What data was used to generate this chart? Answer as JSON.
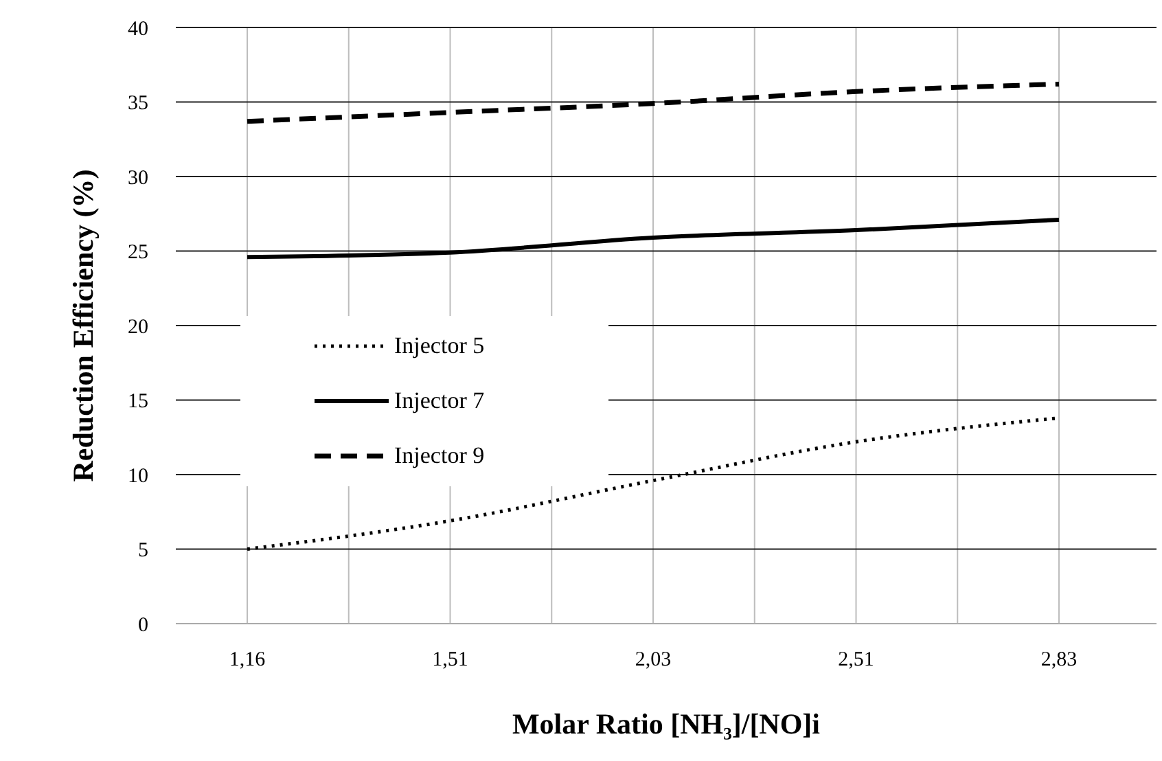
{
  "chart_data": {
    "type": "line",
    "xlabel": "Molar Ratio [NH₃]/[NO]i",
    "ylabel": "Reduction Efficiency (%)",
    "categories": [
      "1,16",
      "1,51",
      "2,03",
      "2,51",
      "2,83"
    ],
    "series": [
      {
        "name": "Injector 5",
        "color": "#000000",
        "line_style": "dotted",
        "values": [
          5.0,
          6.9,
          9.6,
          12.2,
          13.8
        ]
      },
      {
        "name": "Injector 7",
        "color": "#000000",
        "line_style": "solid",
        "values": [
          24.6,
          24.9,
          25.9,
          26.4,
          27.1
        ]
      },
      {
        "name": "Injector 9",
        "color": "#000000",
        "line_style": "dashed",
        "values": [
          33.7,
          34.3,
          34.9,
          35.7,
          36.2
        ]
      }
    ],
    "ylim": [
      0,
      40
    ],
    "yticks": [
      0,
      5,
      10,
      15,
      20,
      25,
      30,
      35,
      40
    ],
    "grid": true,
    "legend": "left",
    "marker": "none"
  }
}
